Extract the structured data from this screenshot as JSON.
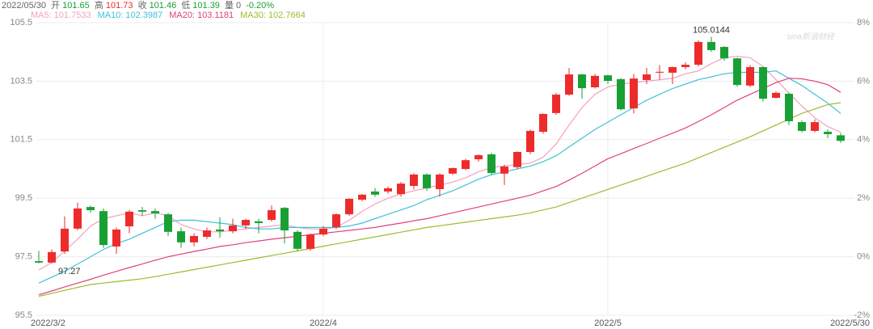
{
  "chart_data": {
    "type": "candlestick",
    "info": {
      "date": "2022/05/30",
      "open_label": "开",
      "open": 101.65,
      "high_label": "高",
      "high": 101.73,
      "close_label": "收",
      "close": 101.46,
      "low_label": "低",
      "low": 101.39,
      "volume_label": "量",
      "volume": 0,
      "change": {
        "value": -0.2,
        "label": "-0.20%"
      }
    },
    "watermark": "sina新浪财经",
    "categories": [
      "2022/3/2",
      null,
      null,
      null,
      null,
      null,
      null,
      null,
      null,
      null,
      null,
      null,
      null,
      null,
      null,
      null,
      null,
      null,
      null,
      null,
      null,
      null,
      "2022/4",
      null,
      null,
      null,
      null,
      null,
      null,
      null,
      null,
      null,
      null,
      null,
      null,
      null,
      null,
      null,
      null,
      null,
      null,
      null,
      null,
      null,
      "2022/5",
      null,
      null,
      null,
      null,
      null,
      null,
      null,
      null,
      null,
      null,
      null,
      null,
      null,
      null,
      null,
      null,
      null,
      "2022/5/30"
    ],
    "open": [
      97.35,
      97.3,
      97.68,
      98.46,
      99.2,
      99.06,
      97.85,
      98.54,
      99.09,
      99.06,
      98.95,
      98.37,
      97.99,
      98.18,
      98.43,
      98.37,
      98.57,
      98.71,
      98.76,
      99.17,
      98.35,
      97.77,
      98.26,
      98.51,
      98.95,
      99.45,
      99.73,
      99.73,
      99.64,
      99.92,
      100.31,
      99.81,
      100.34,
      100.5,
      100.83,
      101.0,
      100.34,
      100.56,
      101.08,
      101.77,
      102.41,
      103.04,
      103.73,
      103.29,
      103.7,
      103.57,
      102.57,
      103.54,
      103.79,
      103.79,
      103.98,
      104.06,
      104.84,
      104.67,
      104.28,
      103.35,
      103.98,
      102.93,
      103.07,
      102.1,
      101.8,
      101.77,
      101.65
    ],
    "high": [
      97.7,
      97.75,
      98.88,
      99.35,
      99.25,
      99.15,
      98.5,
      99.1,
      99.2,
      99.15,
      99.0,
      98.5,
      98.3,
      98.5,
      98.85,
      98.8,
      98.8,
      98.8,
      99.25,
      99.2,
      98.4,
      98.3,
      98.55,
      98.98,
      99.5,
      99.65,
      99.85,
      99.9,
      100.05,
      100.35,
      100.35,
      100.35,
      100.55,
      100.85,
      101.0,
      101.05,
      100.65,
      101.1,
      101.85,
      102.4,
      103.1,
      103.95,
      103.75,
      103.75,
      103.72,
      103.6,
      103.75,
      103.95,
      104.05,
      104.0,
      104.15,
      104.9,
      105.0144,
      104.7,
      104.3,
      104.05,
      104.0,
      103.15,
      103.1,
      102.15,
      102.2,
      101.85,
      101.73
    ],
    "low": [
      97.2733,
      97.27,
      97.6,
      98.4,
      99.0,
      97.8,
      97.6,
      98.3,
      98.9,
      98.8,
      98.2,
      97.8,
      97.85,
      98.1,
      98.15,
      98.3,
      98.45,
      98.3,
      98.7,
      97.95,
      97.7,
      97.7,
      98.2,
      98.45,
      98.9,
      99.4,
      99.55,
      99.65,
      99.55,
      99.8,
      99.75,
      99.55,
      100.3,
      100.45,
      100.75,
      100.3,
      99.95,
      100.5,
      101.0,
      101.7,
      102.35,
      103.0,
      102.9,
      103.25,
      103.4,
      102.5,
      102.4,
      103.4,
      103.55,
      103.4,
      103.9,
      104.0,
      104.5,
      104.2,
      103.3,
      103.3,
      102.8,
      102.9,
      102.0,
      101.75,
      101.75,
      101.55,
      101.39
    ],
    "close": [
      97.3,
      97.66,
      98.46,
      99.15,
      99.09,
      97.9,
      98.43,
      99.04,
      99.04,
      98.98,
      98.35,
      97.99,
      98.21,
      98.4,
      98.37,
      98.57,
      98.76,
      98.65,
      99.09,
      98.4,
      97.77,
      98.26,
      98.46,
      98.95,
      99.48,
      99.62,
      99.62,
      99.84,
      100.0,
      100.31,
      99.84,
      100.31,
      100.53,
      100.8,
      100.97,
      100.36,
      100.58,
      101.08,
      101.8,
      102.38,
      103.04,
      103.73,
      103.26,
      103.68,
      103.51,
      102.54,
      103.59,
      103.73,
      103.82,
      103.98,
      104.06,
      104.84,
      104.56,
      104.28,
      103.37,
      103.98,
      102.9,
      103.1,
      102.13,
      101.8,
      102.1,
      101.69,
      101.46
    ],
    "up_color": "#ee2b2b",
    "down_color": "#18a035",
    "series": [
      {
        "name": "MA5:",
        "color": "#f4a0bf",
        "values": [
          97.05,
          97.3,
          97.7,
          98.1,
          98.55,
          98.8,
          98.9,
          99.0,
          98.9,
          99.0,
          98.9,
          98.6,
          98.45,
          98.35,
          98.35,
          98.4,
          98.45,
          98.5,
          98.55,
          98.6,
          98.5,
          98.45,
          98.45,
          98.5,
          98.75,
          99.05,
          99.3,
          99.5,
          99.65,
          99.75,
          99.85,
          99.95,
          100.05,
          100.2,
          100.4,
          100.55,
          100.6,
          100.65,
          100.7,
          100.9,
          101.35,
          102.0,
          102.6,
          103.05,
          103.3,
          103.4,
          103.45,
          103.5,
          103.55,
          103.6,
          103.75,
          103.85,
          104.1,
          104.3,
          104.35,
          104.3,
          104.0,
          103.55,
          103.1,
          102.65,
          102.25,
          101.95,
          101.7533
        ]
      },
      {
        "name": "MA10:",
        "color": "#3ec2d8",
        "values": [
          96.6,
          96.8,
          97.0,
          97.25,
          97.5,
          97.75,
          97.95,
          98.1,
          98.3,
          98.5,
          98.7,
          98.75,
          98.75,
          98.7,
          98.65,
          98.6,
          98.5,
          98.45,
          98.45,
          98.5,
          98.5,
          98.5,
          98.5,
          98.5,
          98.55,
          98.65,
          98.8,
          98.95,
          99.1,
          99.25,
          99.45,
          99.6,
          99.75,
          99.95,
          100.15,
          100.3,
          100.4,
          100.5,
          100.6,
          100.75,
          100.95,
          101.25,
          101.55,
          101.85,
          102.1,
          102.35,
          102.6,
          102.85,
          103.05,
          103.25,
          103.4,
          103.55,
          103.65,
          103.75,
          103.8,
          103.8,
          103.8,
          103.85,
          103.6,
          103.35,
          103.05,
          102.75,
          102.3987
        ]
      },
      {
        "name": "MA20:",
        "color": "#e2407c",
        "values": [
          96.2,
          96.33,
          96.47,
          96.6,
          96.73,
          96.87,
          97.0,
          97.13,
          97.25,
          97.38,
          97.5,
          97.59,
          97.68,
          97.76,
          97.85,
          97.91,
          97.98,
          98.04,
          98.1,
          98.15,
          98.2,
          98.25,
          98.3,
          98.35,
          98.4,
          98.45,
          98.5,
          98.58,
          98.65,
          98.73,
          98.8,
          98.9,
          99.0,
          99.1,
          99.2,
          99.3,
          99.4,
          99.5,
          99.6,
          99.75,
          99.9,
          100.12,
          100.35,
          100.6,
          100.85,
          101.02,
          101.2,
          101.37,
          101.55,
          101.72,
          101.9,
          102.12,
          102.35,
          102.6,
          102.85,
          103.05,
          103.25,
          103.45,
          103.6,
          103.58,
          103.5,
          103.38,
          103.1181
        ]
      },
      {
        "name": "MA30:",
        "color": "#9cbc2c",
        "values": [
          96.15,
          96.25,
          96.35,
          96.45,
          96.55,
          96.6,
          96.65,
          96.7,
          96.75,
          96.82,
          96.9,
          96.98,
          97.06,
          97.14,
          97.22,
          97.3,
          97.38,
          97.46,
          97.54,
          97.62,
          97.7,
          97.78,
          97.86,
          97.94,
          98.02,
          98.1,
          98.18,
          98.26,
          98.34,
          98.42,
          98.5,
          98.56,
          98.62,
          98.68,
          98.74,
          98.8,
          98.86,
          98.92,
          99.0,
          99.1,
          99.2,
          99.35,
          99.5,
          99.65,
          99.8,
          99.95,
          100.1,
          100.25,
          100.4,
          100.55,
          100.7,
          100.88,
          101.06,
          101.24,
          101.42,
          101.6,
          101.8,
          102.0,
          102.2,
          102.4,
          102.55,
          102.7,
          102.7664
        ]
      }
    ],
    "ylim": [
      95.5,
      105.5
    ],
    "yticks": [
      95.5,
      97.5,
      99.5,
      101.5,
      103.5,
      105.5
    ],
    "y2lim": [
      -2,
      8
    ],
    "y2ticks": [
      {
        "value": -2,
        "label": "-2%"
      },
      {
        "value": 0,
        "label": "0%"
      },
      {
        "value": 2,
        "label": "2%"
      },
      {
        "value": 4,
        "label": "4%"
      },
      {
        "value": 6,
        "label": "6%"
      },
      {
        "value": 8,
        "label": "8%"
      }
    ],
    "grid": true
  }
}
